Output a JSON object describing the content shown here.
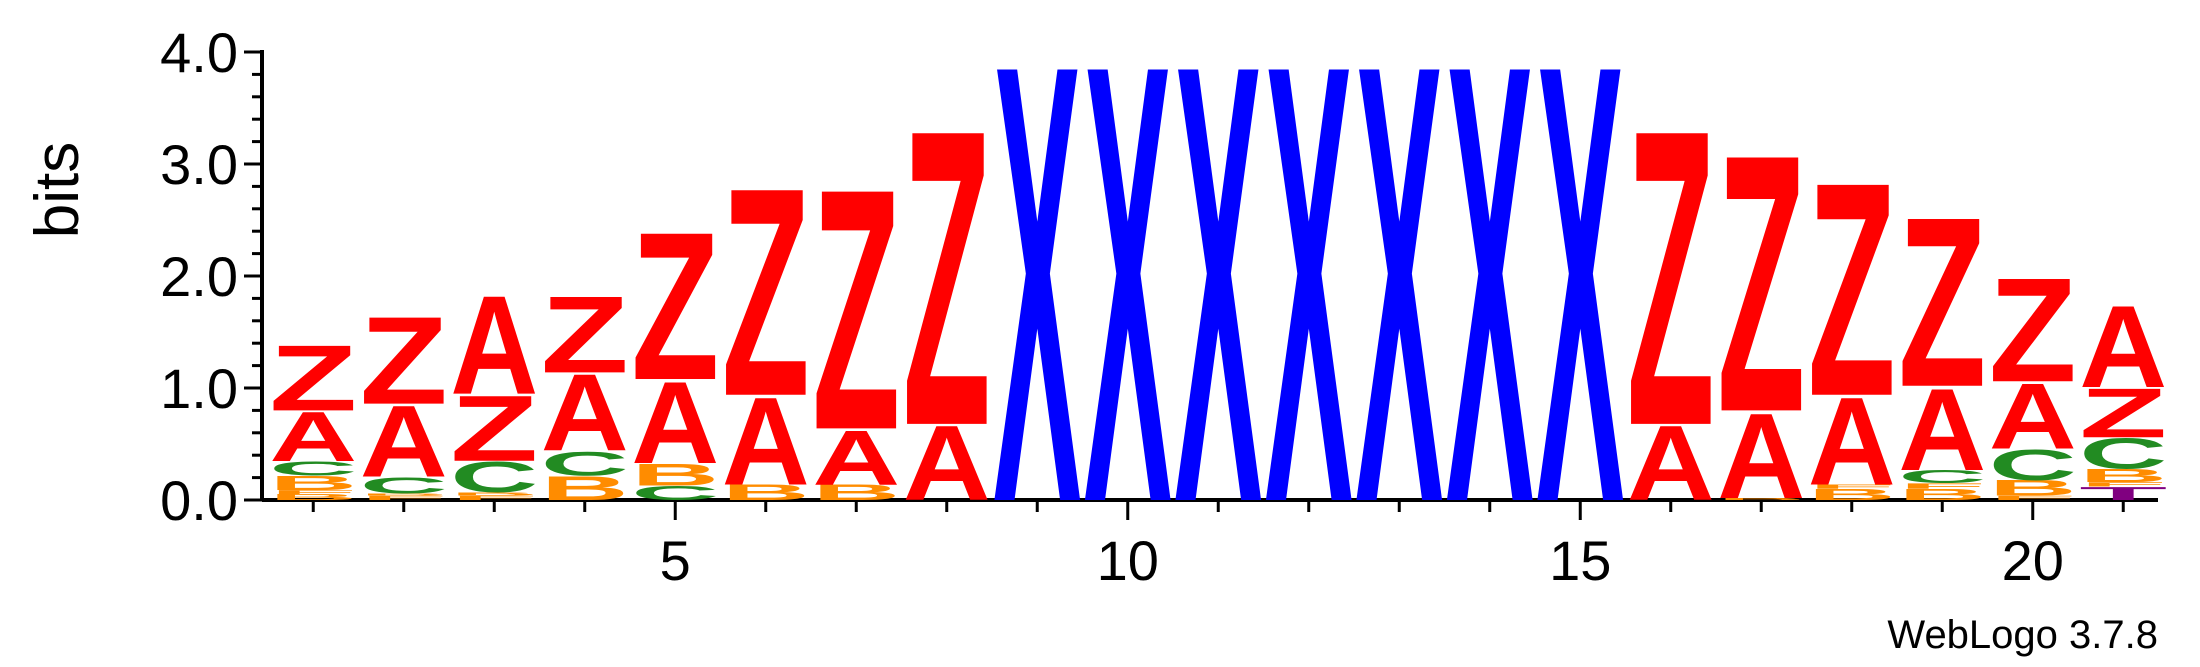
{
  "chart_data": {
    "type": "sequence-logo",
    "title": "",
    "xlabel": "",
    "ylabel": "bits",
    "ylim": [
      0,
      4.0
    ],
    "y_ticks": [
      "0.0",
      "1.0",
      "2.0",
      "3.0",
      "4.0"
    ],
    "y_tick_values": [
      0,
      1,
      2,
      3,
      4
    ],
    "x_ticks": [
      "5",
      "10",
      "15",
      "20"
    ],
    "x_tick_values": [
      5,
      10,
      15,
      20
    ],
    "xlim": [
      0.5,
      21.5
    ],
    "colors": {
      "Z": "#ff0000",
      "A": "#ff0000",
      "X": "#0000ff",
      "C": "#228b22",
      "B": "#ff8c00",
      "F": "#ff8c00",
      "T": "#800080"
    },
    "positions": [
      {
        "pos": 1,
        "stack": [
          [
            "B",
            0.05
          ],
          [
            "F",
            0.04
          ],
          [
            "B",
            0.13
          ],
          [
            "C",
            0.13
          ],
          [
            "A",
            0.45
          ],
          [
            "Z",
            0.6
          ]
        ]
      },
      {
        "pos": 2,
        "stack": [
          [
            "F",
            0.04
          ],
          [
            "B",
            0.02
          ],
          [
            "C",
            0.15
          ],
          [
            "A",
            0.65
          ],
          [
            "Z",
            0.8
          ]
        ]
      },
      {
        "pos": 3,
        "stack": [
          [
            "F",
            0.04
          ],
          [
            "B",
            0.03
          ],
          [
            "C",
            0.28
          ],
          [
            "Z",
            0.6
          ],
          [
            "A",
            0.9
          ]
        ]
      },
      {
        "pos": 4,
        "stack": [
          [
            "B",
            0.22
          ],
          [
            "C",
            0.22
          ],
          [
            "A",
            0.7
          ],
          [
            "Z",
            0.7
          ]
        ]
      },
      {
        "pos": 5,
        "stack": [
          [
            "C",
            0.13
          ],
          [
            "B",
            0.2
          ],
          [
            "A",
            0.75
          ],
          [
            "Z",
            1.35
          ]
        ]
      },
      {
        "pos": 6,
        "stack": [
          [
            "B",
            0.14
          ],
          [
            "A",
            0.8
          ],
          [
            "Z",
            1.9
          ]
        ]
      },
      {
        "pos": 7,
        "stack": [
          [
            "B",
            0.14
          ],
          [
            "A",
            0.5
          ],
          [
            "Z",
            2.2
          ]
        ]
      },
      {
        "pos": 8,
        "stack": [
          [
            "A",
            0.68
          ],
          [
            "Z",
            2.7
          ]
        ]
      },
      {
        "pos": 9,
        "stack": [
          [
            "X",
            4.0
          ]
        ]
      },
      {
        "pos": 10,
        "stack": [
          [
            "X",
            4.0
          ]
        ]
      },
      {
        "pos": 11,
        "stack": [
          [
            "X",
            4.0
          ]
        ]
      },
      {
        "pos": 12,
        "stack": [
          [
            "X",
            4.0
          ]
        ]
      },
      {
        "pos": 13,
        "stack": [
          [
            "X",
            4.0
          ]
        ]
      },
      {
        "pos": 14,
        "stack": [
          [
            "X",
            4.0
          ]
        ]
      },
      {
        "pos": 15,
        "stack": [
          [
            "X",
            4.0
          ]
        ]
      },
      {
        "pos": 16,
        "stack": [
          [
            "A",
            0.68
          ],
          [
            "Z",
            2.7
          ]
        ]
      },
      {
        "pos": 17,
        "stack": [
          [
            "B",
            0.02
          ],
          [
            "A",
            0.78
          ],
          [
            "Z",
            2.35
          ]
        ]
      },
      {
        "pos": 18,
        "stack": [
          [
            "B",
            0.1
          ],
          [
            "F",
            0.04
          ],
          [
            "A",
            0.8
          ],
          [
            "Z",
            1.95
          ]
        ]
      },
      {
        "pos": 19,
        "stack": [
          [
            "B",
            0.1
          ],
          [
            "F",
            0.05
          ],
          [
            "C",
            0.12
          ],
          [
            "A",
            0.75
          ],
          [
            "Z",
            1.55
          ]
        ]
      },
      {
        "pos": 20,
        "stack": [
          [
            "F",
            0.04
          ],
          [
            "B",
            0.14
          ],
          [
            "C",
            0.28
          ],
          [
            "A",
            0.6
          ],
          [
            "Z",
            0.95
          ]
        ]
      },
      {
        "pos": 21,
        "stack": [
          [
            "T",
            0.12
          ],
          [
            "F",
            0.04
          ],
          [
            "B",
            0.12
          ],
          [
            "C",
            0.28
          ],
          [
            "Z",
            0.45
          ],
          [
            "A",
            0.75
          ]
        ]
      }
    ]
  },
  "footer": {
    "credit": "WebLogo 3.7.8"
  }
}
